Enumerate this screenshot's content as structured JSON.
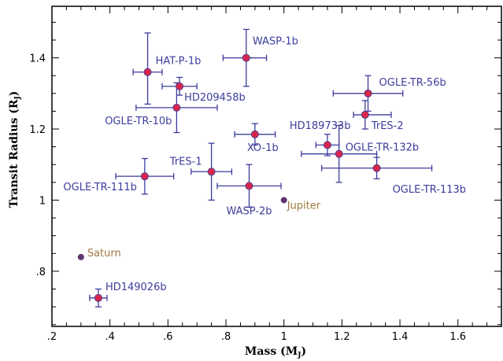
{
  "chart_data": {
    "type": "scatter",
    "xlabel": "Mass (M",
    "xlabel_sub": "J",
    "ylabel": "Transit Radius (R",
    "ylabel_sub": "J",
    "xlim": [
      0.2,
      1.75
    ],
    "ylim": [
      0.645,
      1.545
    ],
    "x_ticks": [
      {
        "value": 0.2,
        "label": ".2"
      },
      {
        "value": 0.4,
        "label": ".4"
      },
      {
        "value": 0.6,
        "label": ".6"
      },
      {
        "value": 0.8,
        "label": ".8"
      },
      {
        "value": 1.0,
        "label": "1"
      },
      {
        "value": 1.2,
        "label": "1.2"
      },
      {
        "value": 1.4,
        "label": "1.4"
      },
      {
        "value": 1.6,
        "label": "1.6"
      }
    ],
    "y_ticks": [
      {
        "value": 0.8,
        "label": ".8"
      },
      {
        "value": 1.0,
        "label": "1"
      },
      {
        "value": 1.2,
        "label": "1.2"
      },
      {
        "value": 1.4,
        "label": "1.4"
      }
    ],
    "colors": {
      "marker_fill": "#d8264b",
      "marker_edge": "#3c3c9c",
      "errorbar": "#3c3c9c",
      "planet_label": "#3c3c9c",
      "solar_label": "#a07840",
      "solar_fill": "#8b2d3a"
    },
    "points": [
      {
        "name": "HAT-P-1b",
        "x": 0.53,
        "y": 1.36,
        "xerr": [
          0.05,
          0.05
        ],
        "yerr": [
          0.09,
          0.11
        ],
        "kind": "planet",
        "label_dx": 10,
        "label_dy": -10,
        "anchor": "start"
      },
      {
        "name": "WASP-1b",
        "x": 0.87,
        "y": 1.4,
        "xerr": [
          0.08,
          0.07
        ],
        "yerr": [
          0.08,
          0.08
        ],
        "kind": "planet",
        "label_dx": 8,
        "label_dy": -17,
        "anchor": "start"
      },
      {
        "name": "HD209458b",
        "x": 0.64,
        "y": 1.32,
        "xerr": [
          0.06,
          0.06
        ],
        "yerr": [
          0.025,
          0.025
        ],
        "kind": "planet",
        "label_dx": 6,
        "label_dy": 18,
        "anchor": "start"
      },
      {
        "name": "OGLE-TR-10b",
        "x": 0.63,
        "y": 1.26,
        "xerr": [
          0.14,
          0.14
        ],
        "yerr": [
          0.07,
          0.07
        ],
        "kind": "planet",
        "label_dx": -6,
        "label_dy": 21,
        "anchor": "end"
      },
      {
        "name": "OGLE-TR-56b",
        "x": 1.29,
        "y": 1.3,
        "xerr": [
          0.12,
          0.12
        ],
        "yerr": [
          0.05,
          0.05
        ],
        "kind": "planet",
        "label_dx": 14,
        "label_dy": -10,
        "anchor": "start"
      },
      {
        "name": "TrES-2",
        "x": 1.28,
        "y": 1.24,
        "xerr": [
          0.04,
          0.09
        ],
        "yerr": [
          0.04,
          0.04
        ],
        "kind": "planet",
        "label_dx": 8,
        "label_dy": 18,
        "anchor": "start"
      },
      {
        "name": "HD189733b",
        "x": 0.9,
        "y": 1.185,
        "xerr": [
          0.07,
          0.07
        ],
        "yerr": [
          0.03,
          0.03
        ],
        "kind": "planet",
        "label_dx": 44,
        "label_dy": -7,
        "anchor": "start"
      },
      {
        "name": "XO-1b",
        "x": 0.9,
        "y": 1.185,
        "xerr": [
          0.0,
          0.0
        ],
        "yerr": [
          0.0,
          0.0
        ],
        "kind": "label-only",
        "label_dx": -10,
        "label_dy": 21,
        "anchor": "start"
      },
      {
        "name": "OGLE-TR-132b",
        "x": 1.19,
        "y": 1.13,
        "xerr": [
          0.13,
          0.13
        ],
        "yerr": [
          0.08,
          0.08
        ],
        "kind": "planet",
        "label_dx": 8,
        "label_dy": -4,
        "anchor": "start"
      },
      {
        "name": "",
        "x": 1.15,
        "y": 1.155,
        "xerr": [
          0.04,
          0.04
        ],
        "yerr": [
          0.03,
          0.03
        ],
        "kind": "planet",
        "label_dx": 0,
        "label_dy": 0,
        "anchor": "start"
      },
      {
        "name": "OGLE-TR-113b",
        "x": 1.32,
        "y": 1.09,
        "xerr": [
          0.19,
          0.19
        ],
        "yerr": [
          0.03,
          0.03
        ],
        "kind": "planet",
        "label_dx": 20,
        "label_dy": 31,
        "anchor": "start"
      },
      {
        "name": "OGLE-TR-111b",
        "x": 0.52,
        "y": 1.067,
        "xerr": [
          0.1,
          0.1
        ],
        "yerr": [
          0.05,
          0.05
        ],
        "kind": "planet",
        "label_dx": -10,
        "label_dy": 18,
        "anchor": "end"
      },
      {
        "name": "TrES-1",
        "x": 0.75,
        "y": 1.08,
        "xerr": [
          0.07,
          0.07
        ],
        "yerr": [
          0.08,
          0.08
        ],
        "kind": "planet",
        "label_dx": -12,
        "label_dy": -9,
        "anchor": "end"
      },
      {
        "name": "WASP-2b",
        "x": 0.88,
        "y": 1.04,
        "xerr": [
          0.11,
          0.11
        ],
        "yerr": [
          0.06,
          0.06
        ],
        "kind": "planet",
        "label_dx": 0,
        "label_dy": 36,
        "anchor": "middle"
      },
      {
        "name": "Jupiter",
        "x": 1.0,
        "y": 1.0,
        "xerr": [
          0,
          0
        ],
        "yerr": [
          0,
          0
        ],
        "kind": "solar",
        "label_dx": 4,
        "label_dy": 11,
        "anchor": "start"
      },
      {
        "name": "Saturn",
        "x": 0.3,
        "y": 0.84,
        "xerr": [
          0,
          0
        ],
        "yerr": [
          0,
          0
        ],
        "kind": "solar",
        "label_dx": 8,
        "label_dy": -1,
        "anchor": "start"
      },
      {
        "name": "HD149026b",
        "x": 0.36,
        "y": 0.725,
        "xerr": [
          0.03,
          0.03
        ],
        "yerr": [
          0.025,
          0.025
        ],
        "kind": "planet",
        "label_dx": 9,
        "label_dy": -10,
        "anchor": "start"
      }
    ]
  }
}
